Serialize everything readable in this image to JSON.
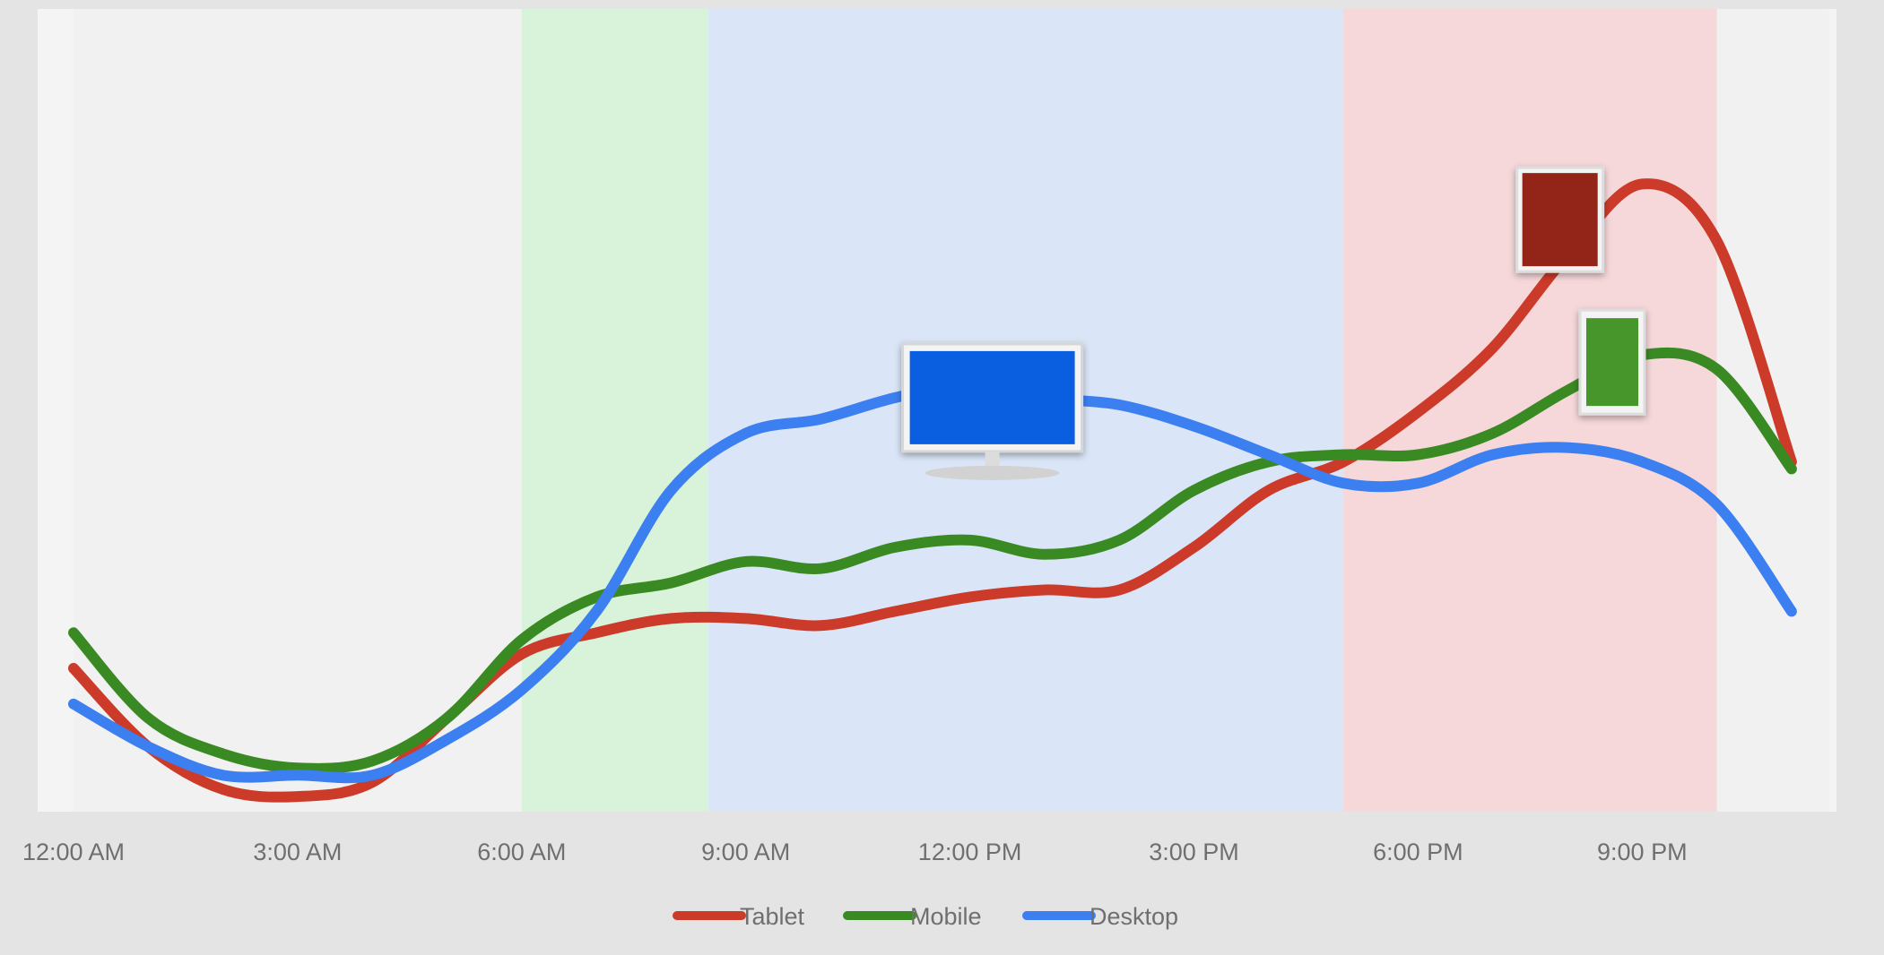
{
  "chart_data": {
    "type": "line",
    "x": [
      0,
      1,
      2,
      3,
      4,
      5,
      6,
      7,
      8,
      9,
      10,
      11,
      12,
      13,
      14,
      15,
      16,
      17,
      18,
      19,
      20,
      21,
      22,
      23
    ],
    "x_tick_labels": [
      "12:00 AM",
      "3:00 AM",
      "6:00 AM",
      "9:00 AM",
      "12:00 PM",
      "3:00 PM",
      "6:00 PM",
      "9:00 PM"
    ],
    "x_tick_hours": [
      0,
      3,
      6,
      9,
      12,
      15,
      18,
      21
    ],
    "ylim": [
      0,
      100
    ],
    "grid": false,
    "legend_position": "bottom",
    "bands": [
      {
        "from": 0,
        "to": 6,
        "color": "#f1f1f1"
      },
      {
        "from": 6,
        "to": 8.5,
        "color": "#d8f3da"
      },
      {
        "from": 8.5,
        "to": 17,
        "color": "#dae6f7"
      },
      {
        "from": 17,
        "to": 22,
        "color": "#f6d8da"
      },
      {
        "from": 22,
        "to": 23.5,
        "color": "#f1f1f1"
      }
    ],
    "series": [
      {
        "name": "Tablet",
        "color": "#cc3a2a",
        "values": [
          20,
          9,
          3,
          2,
          4,
          13,
          22,
          25,
          27,
          27,
          26,
          28,
          30,
          31,
          31,
          37,
          45,
          49,
          56,
          65,
          78,
          88,
          80,
          49
        ]
      },
      {
        "name": "Mobile",
        "color": "#3a8a24",
        "values": [
          25,
          13,
          8,
          6,
          7,
          13,
          24,
          30,
          32,
          35,
          34,
          37,
          38,
          36,
          38,
          45,
          49,
          50,
          50,
          53,
          59,
          64,
          62,
          48
        ]
      },
      {
        "name": "Desktop",
        "color": "#3c7ff0",
        "values": [
          15,
          9,
          5,
          5,
          5,
          10,
          17,
          28,
          45,
          53,
          55,
          58,
          60,
          58,
          57,
          54,
          50,
          46,
          46,
          50,
          51,
          49,
          43,
          28
        ]
      }
    ],
    "icons": [
      {
        "name": "desktop-icon",
        "color": "#0a5fe0",
        "hour": 12.3,
        "value": 58
      },
      {
        "name": "tablet-icon",
        "color": "#922517",
        "hour": 19.9,
        "value": 83
      },
      {
        "name": "mobile-icon",
        "color": "#46962b",
        "hour": 20.6,
        "value": 63
      }
    ]
  }
}
